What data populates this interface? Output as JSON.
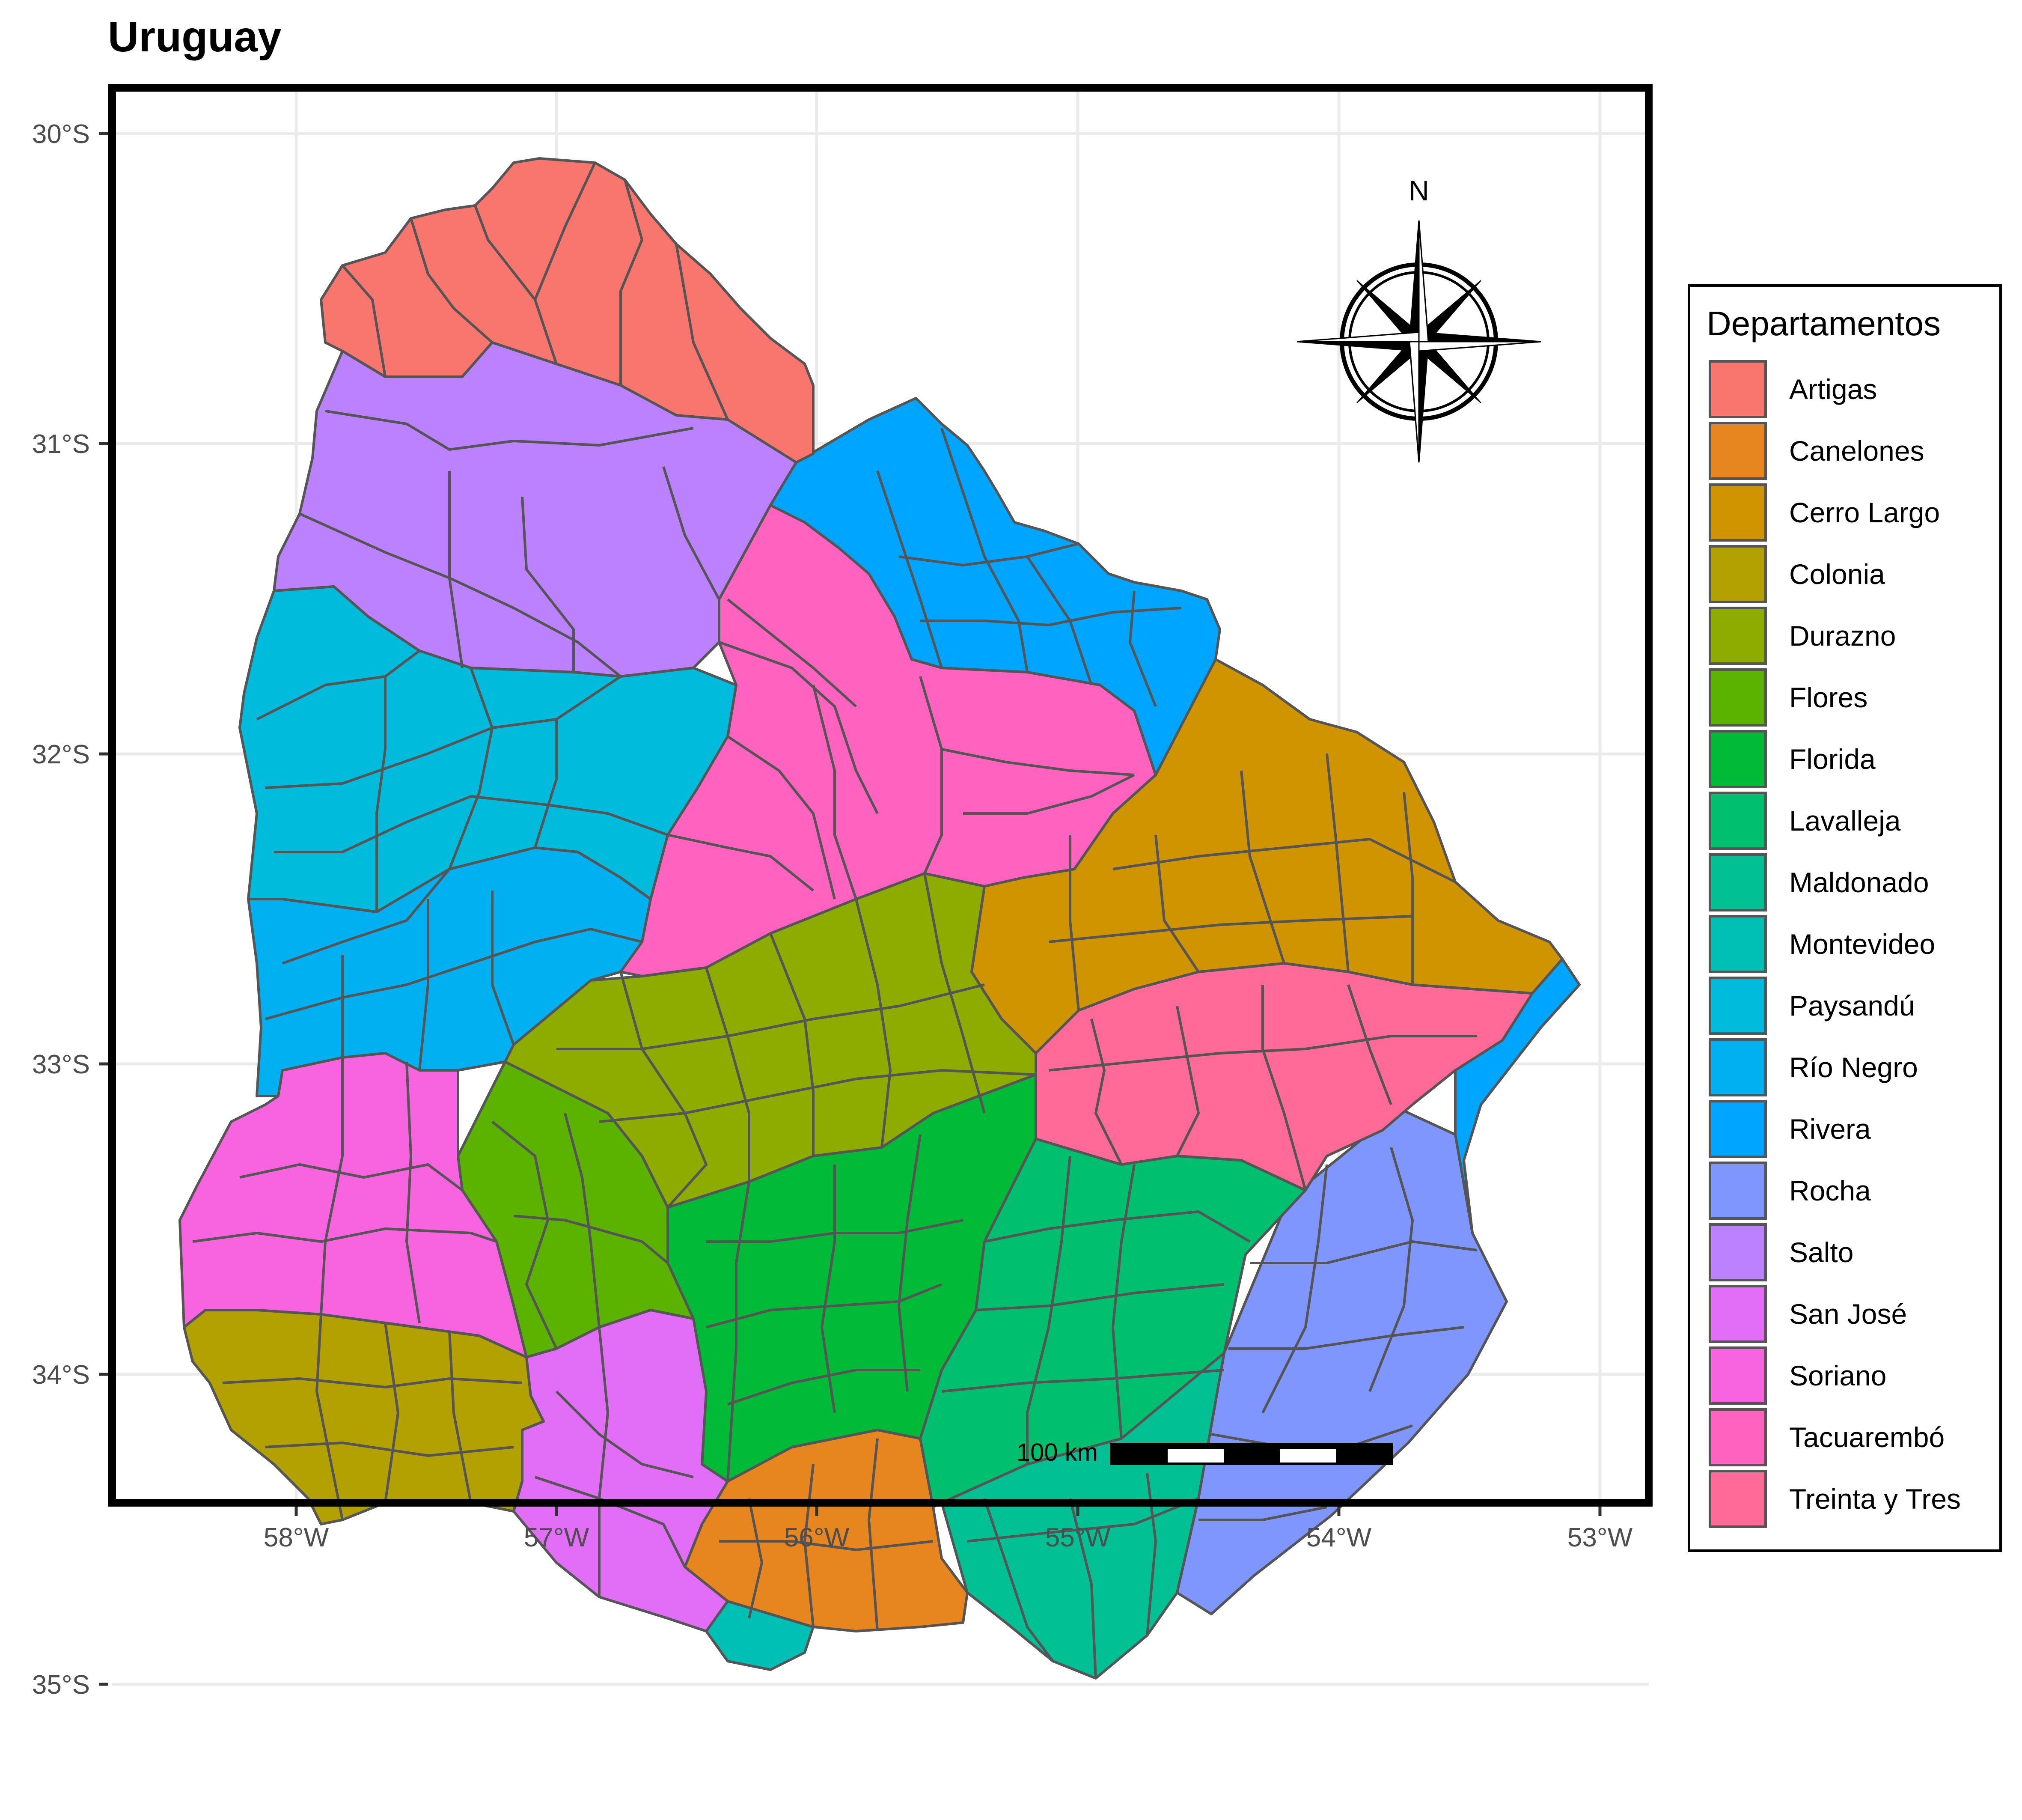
{
  "title": "Uruguay",
  "x_ticks": [
    "58°W",
    "57°W",
    "56°W",
    "55°W",
    "54°W",
    "53°W"
  ],
  "y_ticks": [
    "30°S",
    "31°S",
    "32°S",
    "33°S",
    "34°S",
    "35°S"
  ],
  "legend": {
    "title": "Departamentos",
    "items": [
      {
        "label": "Artigas",
        "color": "#F8766D"
      },
      {
        "label": "Canelones",
        "color": "#E7851E"
      },
      {
        "label": "Cerro Largo",
        "color": "#D09400"
      },
      {
        "label": "Colonia",
        "color": "#B2A100"
      },
      {
        "label": "Durazno",
        "color": "#8EAB00"
      },
      {
        "label": "Flores",
        "color": "#5BB300"
      },
      {
        "label": "Florida",
        "color": "#00BA38"
      },
      {
        "label": "Lavalleja",
        "color": "#00BF6F"
      },
      {
        "label": "Maldonado",
        "color": "#00C094"
      },
      {
        "label": "Montevideo",
        "color": "#00BFB4"
      },
      {
        "label": "Paysandú",
        "color": "#00BBDB"
      },
      {
        "label": "Río Negro",
        "color": "#00B0F0"
      },
      {
        "label": "Rivera",
        "color": "#00A5FF"
      },
      {
        "label": "Rocha",
        "color": "#7F96FF"
      },
      {
        "label": "Salto",
        "color": "#BC81FF"
      },
      {
        "label": "San José",
        "color": "#E26EF7"
      },
      {
        "label": "Soriano",
        "color": "#F863DF"
      },
      {
        "label": "Tacuarembó",
        "color": "#FF62BF"
      },
      {
        "label": "Treinta y Tres",
        "color": "#FF6A98"
      }
    ]
  },
  "compass": {
    "label": "N"
  },
  "scale_bar": {
    "label": "100 km"
  }
}
